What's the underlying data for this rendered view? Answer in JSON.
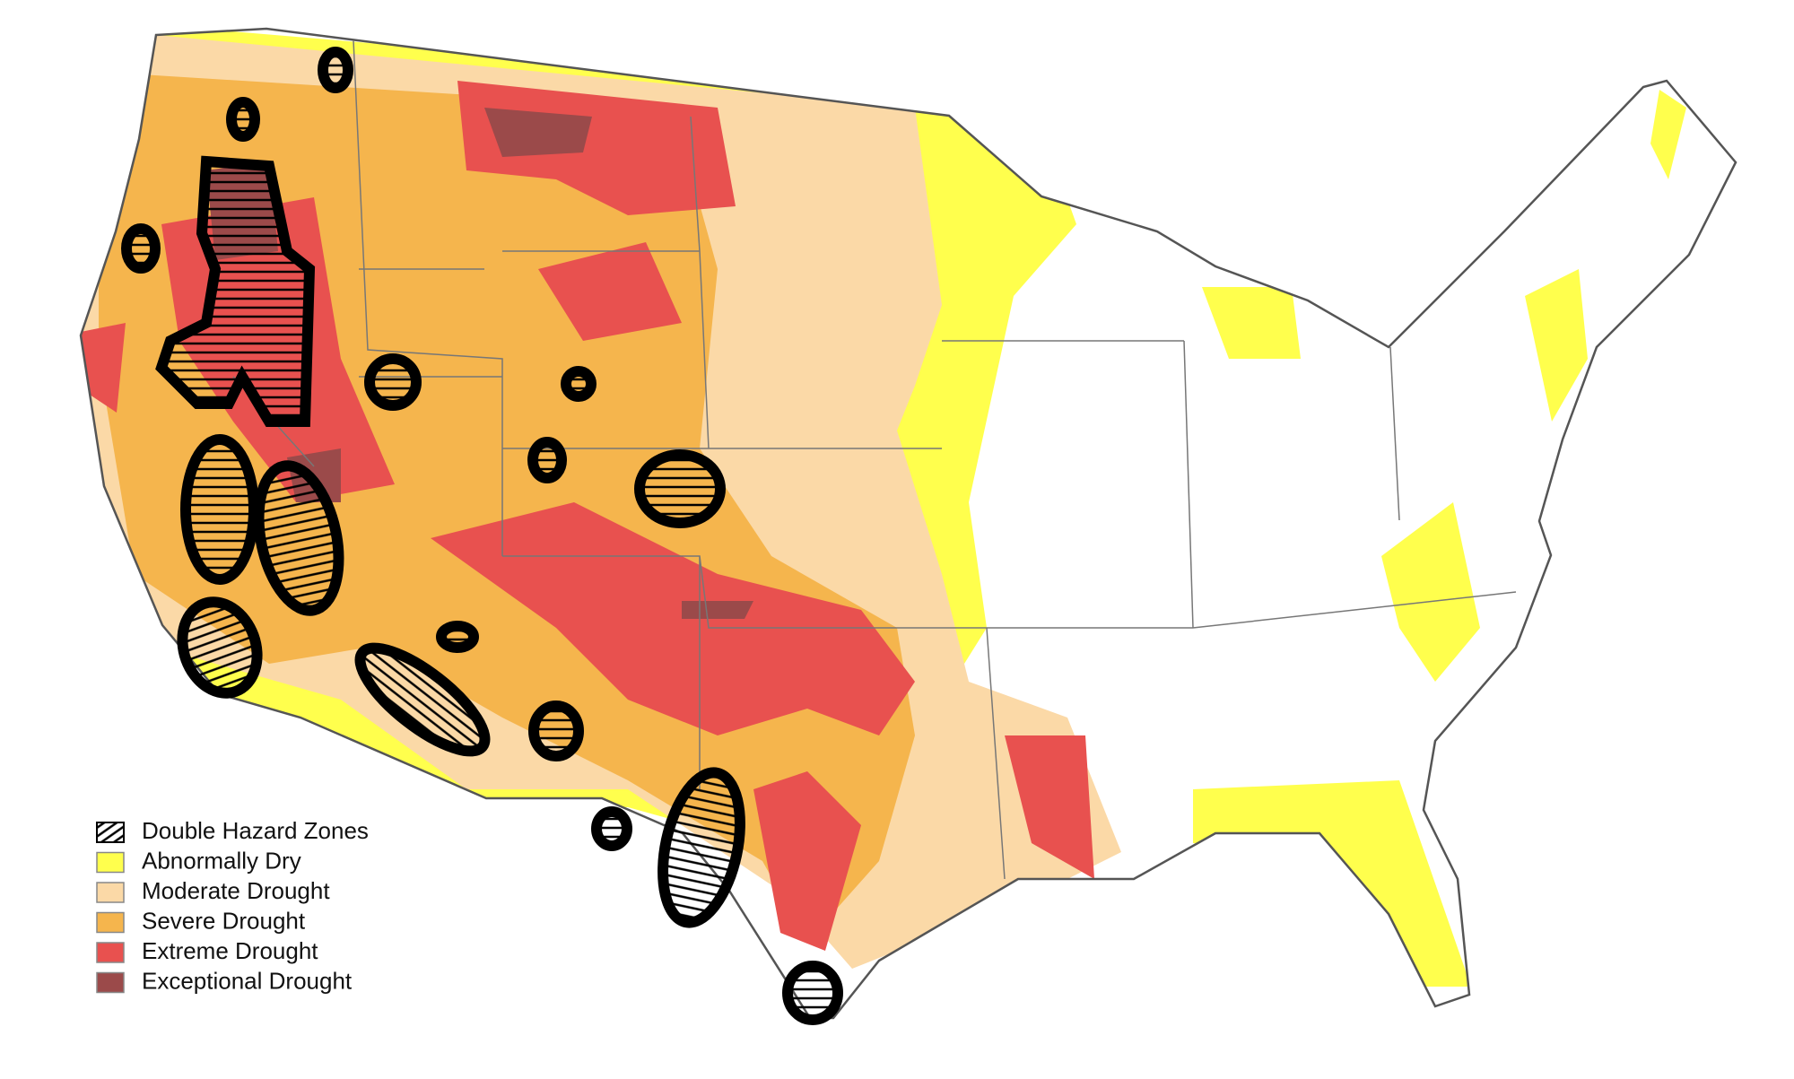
{
  "legend": {
    "items": [
      "Double Hazard Zones",
      "Abnormally Dry",
      "Moderate Drought",
      "Severe Drought",
      "Extreme Drought",
      "Exceptional Drought"
    ]
  }
}
